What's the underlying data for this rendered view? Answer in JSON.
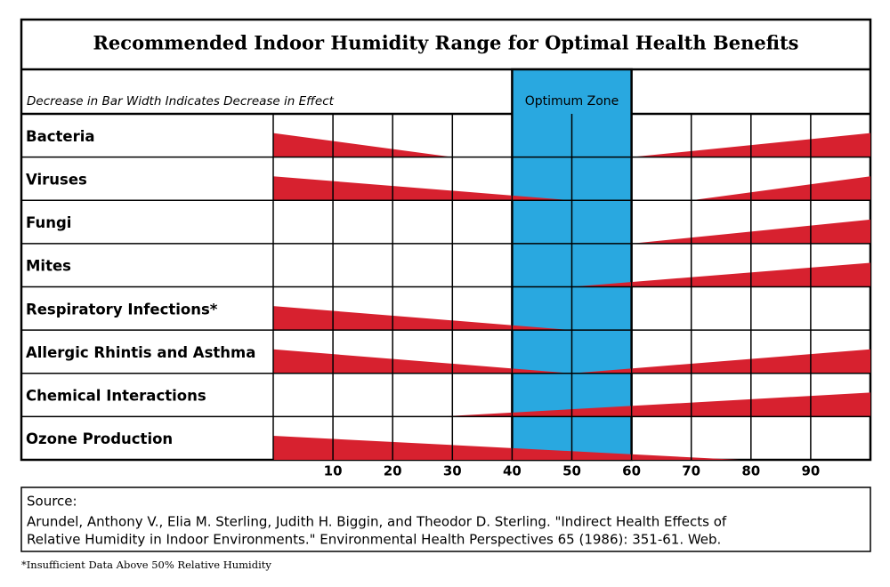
{
  "chart_data": {
    "type": "range-wedge",
    "title": "Recommended Indoor Humidity Range for Optimal Health Benefits",
    "subtitle": "Decrease in Bar Width Indicates Decrease in Effect",
    "zone_label": "Optimum Zone",
    "zone": [
      40,
      60
    ],
    "zone_color": "#29a8e0",
    "title_color": "#4aa8d8",
    "color": "#d7212f",
    "xlim": [
      0,
      100
    ],
    "xticks": [
      10,
      20,
      30,
      40,
      50,
      60,
      70,
      80,
      90
    ],
    "grid": true,
    "categories": [
      "Bacteria",
      "Viruses",
      "Fungi",
      "Mites",
      "Respiratory Infections*",
      "Allergic Rhintis and Asthma",
      "Chemical Interactions",
      "Ozone Production"
    ],
    "wedges": [
      [
        {
          "wide": 0,
          "narrow": 30
        },
        {
          "wide": 100,
          "narrow": 60
        }
      ],
      [
        {
          "wide": 0,
          "narrow": 50
        },
        {
          "wide": 100,
          "narrow": 70
        }
      ],
      [
        {
          "wide": 100,
          "narrow": 60
        }
      ],
      [
        {
          "wide": 100,
          "narrow": 50
        }
      ],
      [
        {
          "wide": 0,
          "narrow": 50
        }
      ],
      [
        {
          "wide": 0,
          "narrow": 50
        },
        {
          "wide": 100,
          "narrow": 50
        }
      ],
      [
        {
          "wide": 100,
          "narrow": 28
        }
      ],
      [
        {
          "wide": 0,
          "narrow": 78
        }
      ]
    ],
    "source_label": "Source:",
    "citation": [
      "Arundel, Anthony V., Elia M. Sterling, Judith H. Biggin, and Theodor D. Sterling. \"Indirect Health Effects of",
      "Relative Humidity in Indoor Environments.\" Environmental Health Perspectives 65 (1986): 351-61. Web."
    ],
    "footnote": "*Insufficient Data Above 50% Relative Humidity"
  }
}
